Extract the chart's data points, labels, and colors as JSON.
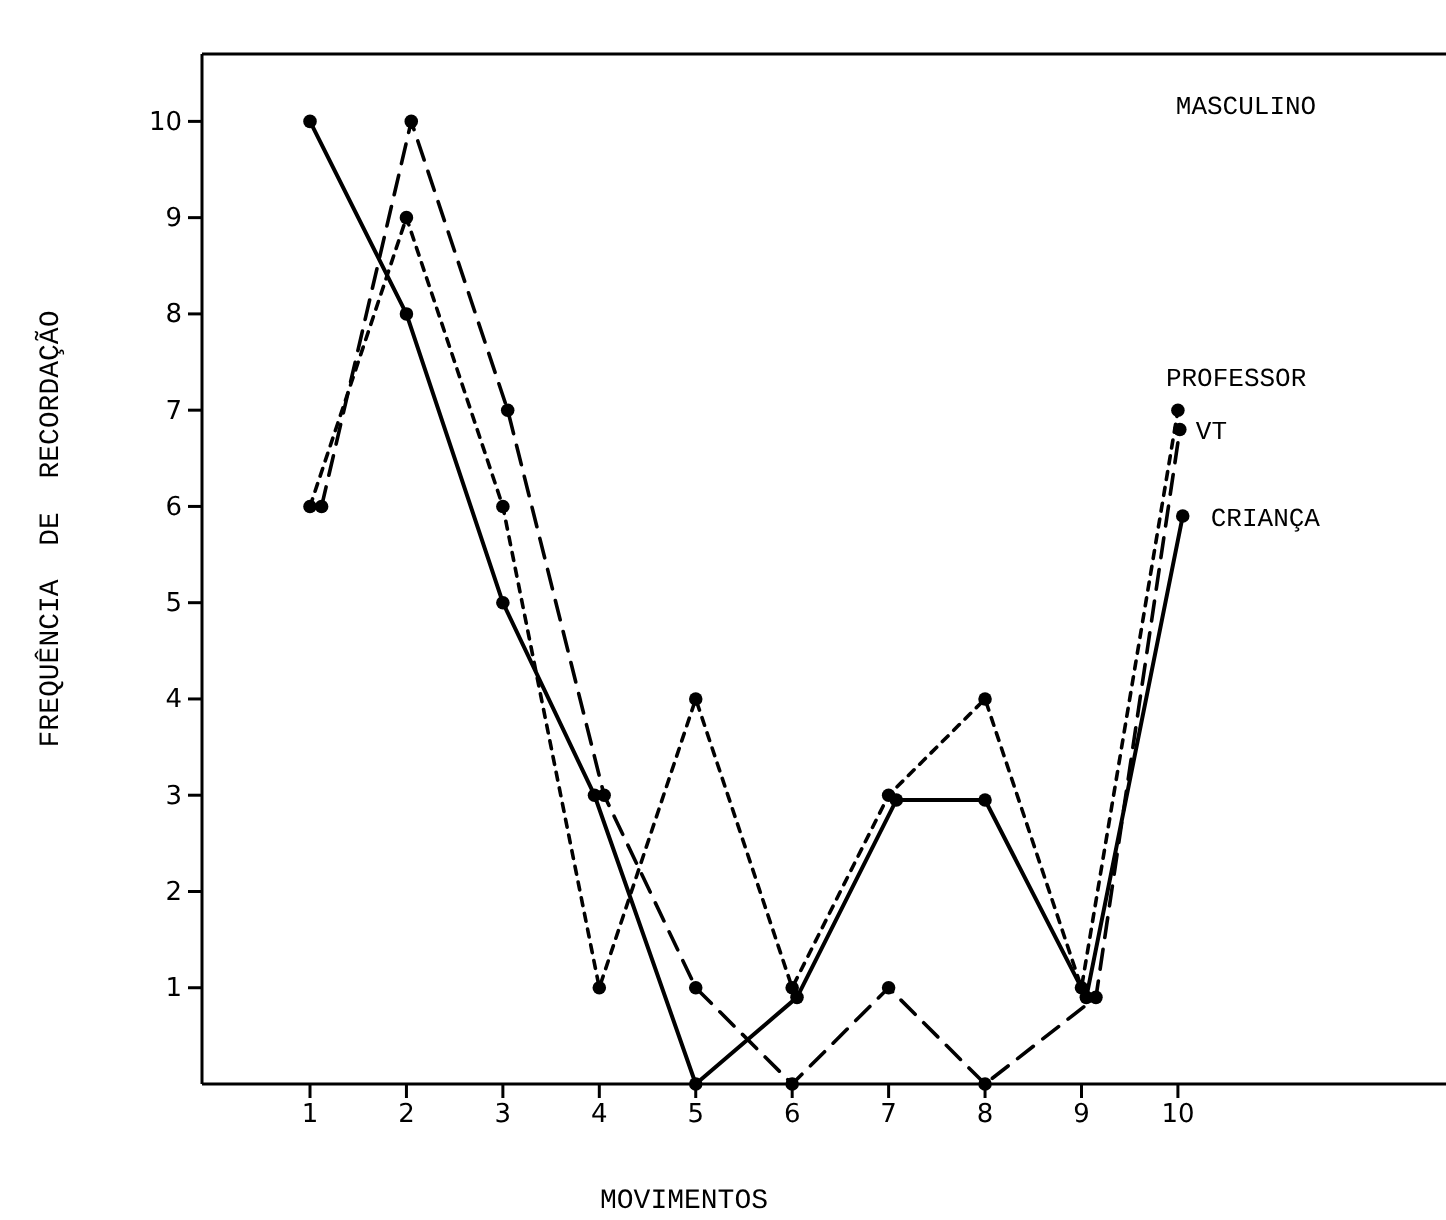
{
  "chart_data": {
    "type": "line",
    "xlabel": "MOVIMENTOS",
    "ylabel": "FREQUÊNCIA  DE  RECORDAÇÃO",
    "annotations": [
      "MASCULINO"
    ],
    "xlim": [
      -0.12,
      12.78
    ],
    "ylim": [
      0,
      10.7
    ],
    "xticks": [
      1,
      2,
      3,
      4,
      5,
      6,
      7,
      8,
      9,
      10
    ],
    "yticks": [
      1,
      2,
      3,
      4,
      5,
      6,
      7,
      8,
      9,
      10
    ],
    "grid": false,
    "legend": false,
    "marker": "circle",
    "series": [
      {
        "name": "PROFESSOR",
        "color": "#000000",
        "line_style": "dotted",
        "x": [
          1,
          2,
          3,
          4,
          5,
          6,
          7,
          8,
          9,
          10
        ],
        "values": [
          6,
          9,
          6,
          1,
          4,
          1,
          3,
          4,
          1,
          7
        ]
      },
      {
        "name": "VT",
        "color": "#000000",
        "line_style": "dashed",
        "x": [
          1.12,
          2.05,
          3.05,
          4.05,
          5,
          6,
          7,
          8,
          9.15,
          10.02
        ],
        "values": [
          6,
          10,
          7,
          3,
          1,
          0,
          1,
          0,
          0.9,
          6.8
        ]
      },
      {
        "name": "CRIANÇA",
        "color": "#000000",
        "line_style": "solid",
        "x": [
          1,
          2,
          3,
          3.95,
          5,
          6.05,
          7.08,
          8,
          9.05,
          10.05
        ],
        "values": [
          10,
          8,
          5,
          3,
          0,
          0.9,
          2.95,
          2.95,
          0.9,
          5.9
        ]
      }
    ]
  }
}
